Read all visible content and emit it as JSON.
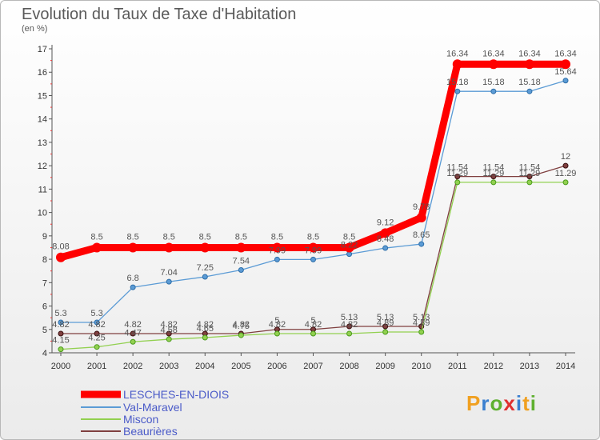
{
  "chart_data": {
    "type": "line",
    "title": "Evolution du Taux de Taxe d'Habitation",
    "subtitle": "(en %)",
    "x": [
      "2000",
      "2001",
      "2002",
      "2003",
      "2004",
      "2005",
      "2006",
      "2007",
      "2008",
      "2009",
      "2010",
      "2011",
      "2012",
      "2013",
      "2014"
    ],
    "ylim": [
      4,
      17
    ],
    "yticks": [
      4,
      5,
      6,
      7,
      8,
      9,
      10,
      11,
      12,
      13,
      14,
      15,
      16,
      17
    ],
    "grid": false,
    "legend_position": "bottom-left",
    "series": [
      {
        "name": "LESCHES-EN-DIOIS",
        "color": "#ff0000",
        "values": [
          8.08,
          8.5,
          8.5,
          8.5,
          8.5,
          8.5,
          8.5,
          8.5,
          8.5,
          9.12,
          9.78,
          16.34,
          16.34,
          16.34,
          16.34
        ],
        "labels": [
          "8.08",
          "8.5",
          "8.5",
          "8.5",
          "8.5",
          "8.5",
          "8.5",
          "8.5",
          "8.5",
          "9.12",
          "9.78",
          "16.34",
          "16.34",
          "16.34",
          "16.34"
        ]
      },
      {
        "name": "Val-Maravel",
        "color": "#5b9bd5",
        "values": [
          5.3,
          5.3,
          6.8,
          7.04,
          7.25,
          7.54,
          7.99,
          7.99,
          8.22,
          8.48,
          8.65,
          15.18,
          15.18,
          15.18,
          15.64
        ],
        "labels": [
          "5.3",
          "5.3",
          "6.8",
          "7.04",
          "7.25",
          "7.54",
          "7.99",
          "7.99",
          "8.22",
          "8.48",
          "8.65",
          "15.18",
          "15.18",
          "15.18",
          "15.64"
        ]
      },
      {
        "name": "Miscon",
        "color": "#92d050",
        "values": [
          4.15,
          4.25,
          4.47,
          4.58,
          4.65,
          4.75,
          4.82,
          4.82,
          4.82,
          4.89,
          4.89,
          11.29,
          11.29,
          11.29,
          11.29
        ],
        "labels": [
          "4.15",
          "4.25",
          "4.47",
          "4.58",
          "4.65",
          "4.75",
          "4.82",
          "4.82",
          "4.82",
          "4.89",
          "4.89",
          "11.29",
          "11.29",
          "11.29",
          "11.29"
        ]
      },
      {
        "name": "Beaurières",
        "color": "#7f3f3f",
        "values": [
          4.82,
          4.82,
          4.82,
          4.82,
          4.82,
          4.82,
          5,
          5,
          5.13,
          5.13,
          5.13,
          11.54,
          11.54,
          11.54,
          12
        ],
        "labels": [
          "4.82",
          "4.82",
          "4.82",
          "4.82",
          "4.82",
          "4.82",
          "5",
          "5",
          "5.13",
          "5.13",
          "5.13",
          "11.54",
          "11.54",
          "11.54",
          "12"
        ]
      }
    ]
  },
  "logo": {
    "p": "P",
    "r": "r",
    "o": "o",
    "x": "x",
    "i": "i",
    "t": "t",
    "i2": "i"
  }
}
